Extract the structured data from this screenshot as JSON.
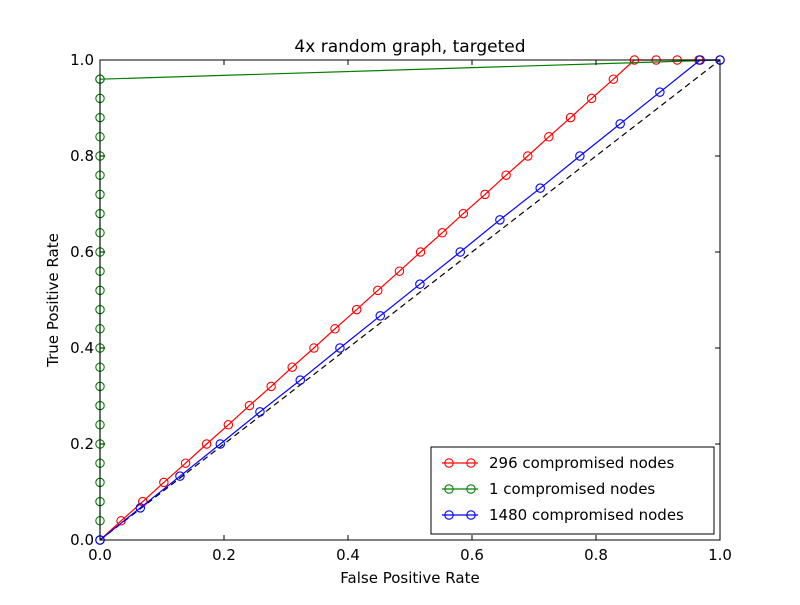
{
  "chart_data": {
    "type": "line",
    "title": "4x random graph, targeted",
    "xlabel": "False Positive Rate",
    "ylabel": "True Positive Rate",
    "xlim": [
      0.0,
      1.0
    ],
    "ylim": [
      0.0,
      1.0
    ],
    "xticks": [
      "0.0",
      "0.2",
      "0.4",
      "0.6",
      "0.8",
      "1.0"
    ],
    "yticks": [
      "0.0",
      "0.2",
      "0.4",
      "0.6",
      "0.8",
      "1.0"
    ],
    "grid": false,
    "legend_position": "lower-right",
    "diagonal": {
      "style": "dashed",
      "color": "#000000",
      "x": [
        0,
        1
      ],
      "y": [
        0,
        1
      ]
    },
    "series": [
      {
        "name": "296 compromised nodes",
        "color": "#ff0000",
        "marker": "circle",
        "x": [
          0.0,
          0.034,
          0.069,
          0.103,
          0.138,
          0.172,
          0.207,
          0.241,
          0.276,
          0.31,
          0.345,
          0.379,
          0.414,
          0.448,
          0.483,
          0.517,
          0.552,
          0.586,
          0.621,
          0.655,
          0.69,
          0.724,
          0.759,
          0.793,
          0.828,
          0.862,
          0.897,
          0.931,
          0.966,
          1.0
        ],
        "y": [
          0.0,
          0.04,
          0.08,
          0.12,
          0.16,
          0.2,
          0.24,
          0.28,
          0.32,
          0.36,
          0.4,
          0.44,
          0.48,
          0.52,
          0.56,
          0.6,
          0.64,
          0.68,
          0.72,
          0.76,
          0.8,
          0.84,
          0.88,
          0.92,
          0.96,
          1.0,
          1.0,
          1.0,
          1.0,
          1.0
        ]
      },
      {
        "name": "1 compromised nodes",
        "color": "#008000",
        "marker": "circle",
        "x": [
          0.0,
          0.0,
          0.0,
          0.0,
          0.0,
          0.0,
          0.0,
          0.0,
          0.0,
          0.0,
          0.0,
          0.0,
          0.0,
          0.0,
          0.0,
          0.0,
          0.0,
          0.0,
          0.0,
          0.0,
          0.0,
          0.0,
          0.0,
          0.0,
          0.0,
          0.0,
          1.0
        ],
        "y": [
          0.0,
          0.04,
          0.08,
          0.12,
          0.16,
          0.2,
          0.24,
          0.28,
          0.32,
          0.36,
          0.4,
          0.44,
          0.48,
          0.52,
          0.56,
          0.6,
          0.64,
          0.68,
          0.72,
          0.76,
          0.8,
          0.84,
          0.88,
          0.92,
          0.96,
          0.96,
          1.0
        ]
      },
      {
        "name": "1480 compromised nodes",
        "color": "#0000ff",
        "marker": "circle",
        "x": [
          0.0,
          0.065,
          0.129,
          0.194,
          0.258,
          0.323,
          0.387,
          0.452,
          0.516,
          0.581,
          0.645,
          0.71,
          0.774,
          0.839,
          0.903,
          0.968,
          1.0
        ],
        "y": [
          0.0,
          0.067,
          0.133,
          0.2,
          0.267,
          0.333,
          0.4,
          0.467,
          0.533,
          0.6,
          0.667,
          0.733,
          0.8,
          0.867,
          0.933,
          1.0,
          1.0
        ]
      }
    ]
  }
}
